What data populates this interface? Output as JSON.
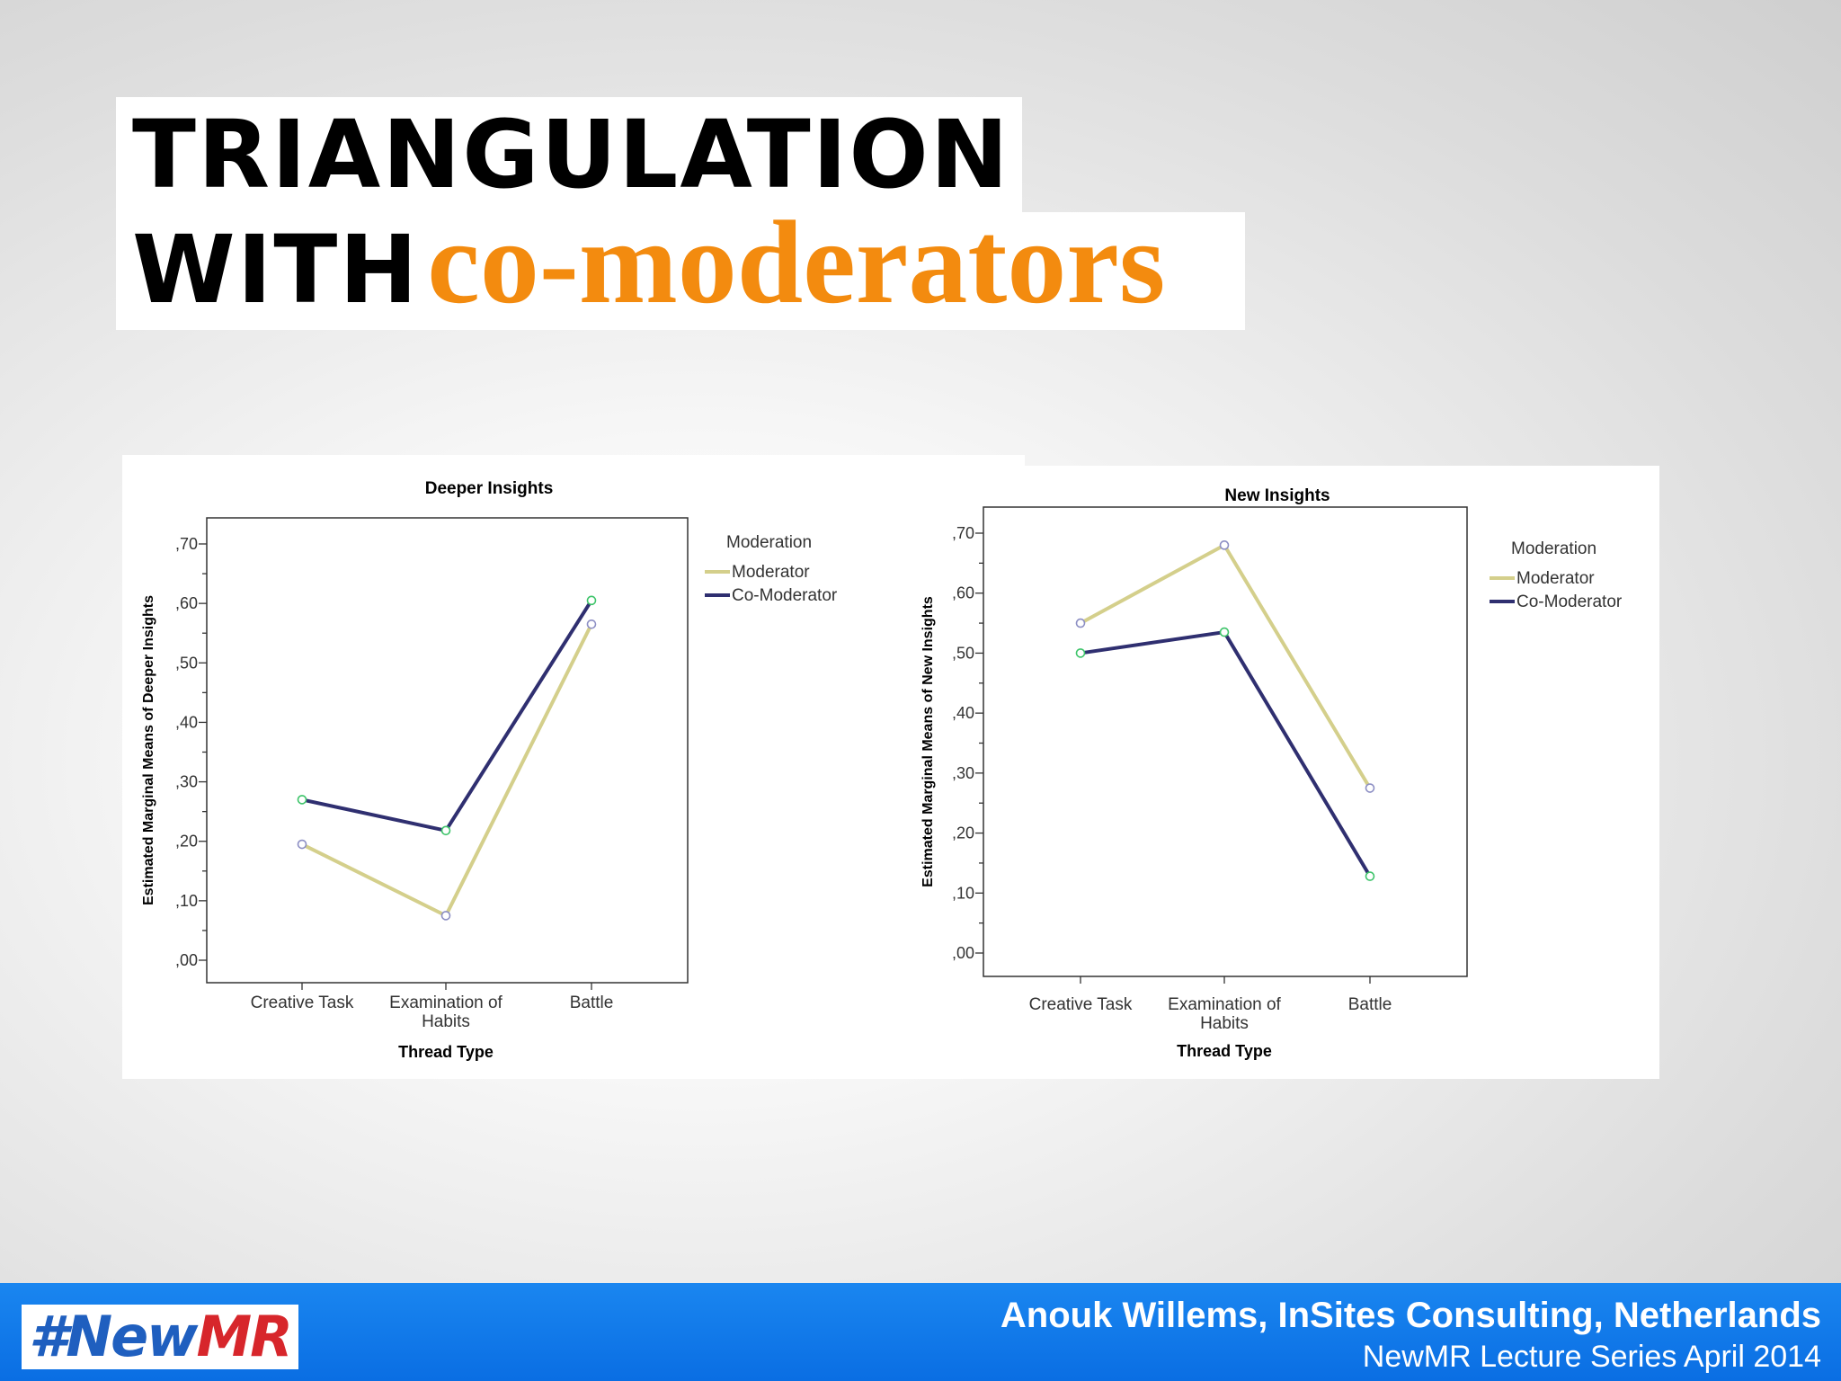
{
  "slide": {
    "title_line1": "TRIANGULATION",
    "title_line2_black": "WITH",
    "title_line2_orange": "co-moderators",
    "accent_color": "#f38b0f"
  },
  "chart_data": [
    {
      "type": "line",
      "title": "Deeper Insights",
      "xlabel": "Thread Type",
      "ylabel": "Estimated Marginal Means of Deeper Insights",
      "categories": [
        "Creative Task",
        "Examination of Habits",
        "Battle"
      ],
      "ylim": [
        0,
        0.75
      ],
      "yticks": [
        ",00",
        ",10",
        ",20",
        ",30",
        ",40",
        ",50",
        ",60",
        ",70"
      ],
      "legend_title": "Moderation",
      "legend_position": "right",
      "series": [
        {
          "name": "Moderator",
          "color": "#d4cf8b",
          "values": [
            0.195,
            0.075,
            0.565
          ]
        },
        {
          "name": "Co-Moderator",
          "color": "#2f2f70",
          "values": [
            0.27,
            0.218,
            0.605
          ]
        }
      ]
    },
    {
      "type": "line",
      "title": "New Insights",
      "xlabel": "Thread Type",
      "ylabel": "Estimated Marginal Means of New Insights",
      "categories": [
        "Creative Task",
        "Examination of Habits",
        "Battle"
      ],
      "ylim": [
        0,
        0.73
      ],
      "yticks": [
        ",00",
        ",10",
        ",20",
        ",30",
        ",40",
        ",50",
        ",60",
        ",70"
      ],
      "legend_title": "Moderation",
      "legend_position": "right",
      "series": [
        {
          "name": "Moderator",
          "color": "#d4cf8b",
          "values": [
            0.55,
            0.68,
            0.275
          ]
        },
        {
          "name": "Co-Moderator",
          "color": "#2f2f70",
          "values": [
            0.5,
            0.535,
            0.128
          ]
        }
      ]
    }
  ],
  "footer": {
    "logo_part1": "#New",
    "logo_part2": "MR",
    "line1": "Anouk Willems, InSites Consulting, Netherlands",
    "line2": "NewMR Lecture Series April 2014",
    "background_color": "#0a6ee3"
  }
}
